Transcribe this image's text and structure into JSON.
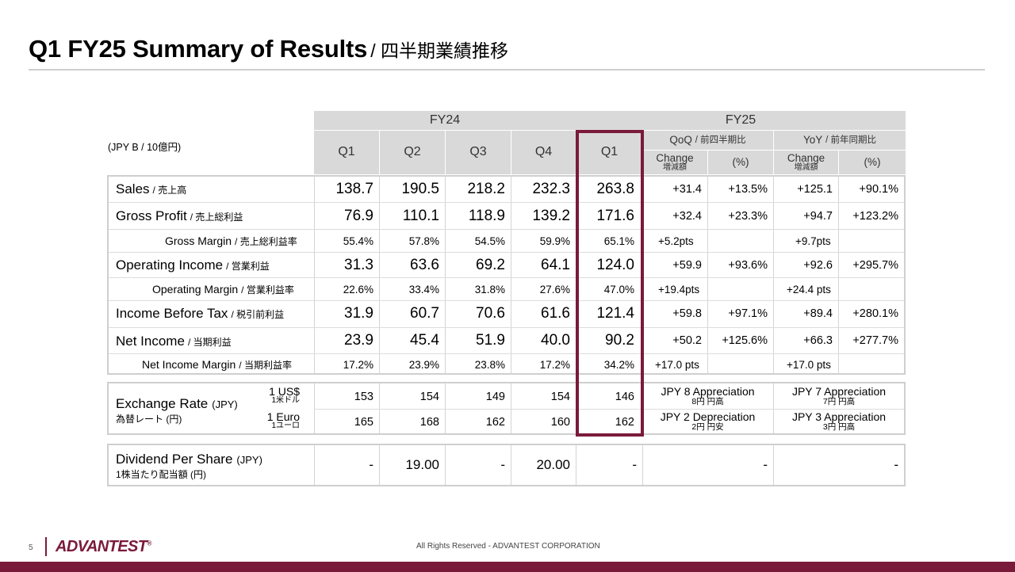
{
  "header": {
    "title": "Q1 FY25 Summary of Results",
    "title_jp": "/ 四半期業績推移"
  },
  "unit_label": "(JPY B / 10億円)",
  "columns": {
    "fy24": "FY24",
    "fy25": "FY25",
    "quarters": [
      "Q1",
      "Q2",
      "Q3",
      "Q4",
      "Q1"
    ],
    "qoq": "QoQ",
    "qoq_jp": "/ 前四半期比",
    "yoy": "YoY",
    "yoy_jp": "/ 前年同期比",
    "change": "Change",
    "change_jp": "増減額",
    "pct": "(%)"
  },
  "rows": [
    {
      "label": "Sales",
      "label_jp": "/ 売上高",
      "values": [
        "138.7",
        "190.5",
        "218.2",
        "232.3",
        "263.8"
      ],
      "qoq_change": "+31.4",
      "qoq_pct": "+13.5%",
      "yoy_change": "+125.1",
      "yoy_pct": "+90.1%"
    },
    {
      "label": "Gross Profit",
      "label_jp": "/ 売上総利益",
      "values": [
        "76.9",
        "110.1",
        "118.9",
        "139.2",
        "171.6"
      ],
      "qoq_change": "+32.4",
      "qoq_pct": "+23.3%",
      "yoy_change": "+94.7",
      "yoy_pct": "+123.2%"
    },
    {
      "label": "Gross Margin",
      "label_jp": "/ 売上総利益率",
      "values": [
        "55.4%",
        "57.8%",
        "54.5%",
        "59.9%",
        "65.1%"
      ],
      "qoq_change": "+5.2pts",
      "qoq_pct": "",
      "yoy_change": "+9.7pts",
      "yoy_pct": ""
    },
    {
      "label": "Operating Income",
      "label_jp": "/ 営業利益",
      "values": [
        "31.3",
        "63.6",
        "69.2",
        "64.1",
        "124.0"
      ],
      "qoq_change": "+59.9",
      "qoq_pct": "+93.6%",
      "yoy_change": "+92.6",
      "yoy_pct": "+295.7%"
    },
    {
      "label": "Operating Margin",
      "label_jp": "/ 営業利益率",
      "values": [
        "22.6%",
        "33.4%",
        "31.8%",
        "27.6%",
        "47.0%"
      ],
      "qoq_change": "+19.4pts",
      "qoq_pct": "",
      "yoy_change": "+24.4 pts",
      "yoy_pct": ""
    },
    {
      "label": "Income Before Tax",
      "label_jp": "/ 税引前利益",
      "values": [
        "31.9",
        "60.7",
        "70.6",
        "61.6",
        "121.4"
      ],
      "qoq_change": "+59.8",
      "qoq_pct": "+97.1%",
      "yoy_change": "+89.4",
      "yoy_pct": "+280.1%"
    },
    {
      "label": "Net Income",
      "label_jp": "/ 当期利益",
      "values": [
        "23.9",
        "45.4",
        "51.9",
        "40.0",
        "90.2"
      ],
      "qoq_change": "+50.2",
      "qoq_pct": "+125.6%",
      "yoy_change": "+66.3",
      "yoy_pct": "+277.7%"
    },
    {
      "label": "Net Income Margin",
      "label_jp": "/ 当期利益率",
      "values": [
        "17.2%",
        "23.9%",
        "23.8%",
        "17.2%",
        "34.2%"
      ],
      "qoq_change": "+17.0 pts",
      "qoq_pct": "",
      "yoy_change": "+17.0 pts",
      "yoy_pct": ""
    }
  ],
  "fx": {
    "label": "Exchange Rate",
    "label_unit": "(JPY)",
    "label_jp": "為替レート (円)",
    "usd": {
      "unit": "1 US$",
      "unit_jp": "1米ドル",
      "values": [
        "153",
        "154",
        "149",
        "154",
        "146"
      ],
      "qoq": "JPY 8 Appreciation",
      "qoq_jp": "8円 円高",
      "yoy": "JPY 7 Appreciation",
      "yoy_jp": "7円 円高"
    },
    "eur": {
      "unit": "1 Euro",
      "unit_jp": "1ユーロ",
      "values": [
        "165",
        "168",
        "162",
        "160",
        "162"
      ],
      "qoq": "JPY 2 Depreciation",
      "qoq_jp": "2円 円安",
      "yoy": "JPY 3 Appreciation",
      "yoy_jp": "3円 円高"
    }
  },
  "dividend": {
    "label": "Dividend Per Share",
    "label_unit": "(JPY)",
    "label_jp": "1株当たり配当額 (円)",
    "values": [
      "-",
      "19.00",
      "-",
      "20.00",
      "-"
    ],
    "qoq": "-",
    "yoy": "-"
  },
  "footer": {
    "page": "5",
    "logo": "ADVANTEST",
    "copyright": "All Rights Reserved - ADVANTEST CORPORATION"
  },
  "colors": {
    "accent": "#7a1a3a",
    "header_gray": "#d9d9d9",
    "border": "#cfcfcf"
  }
}
